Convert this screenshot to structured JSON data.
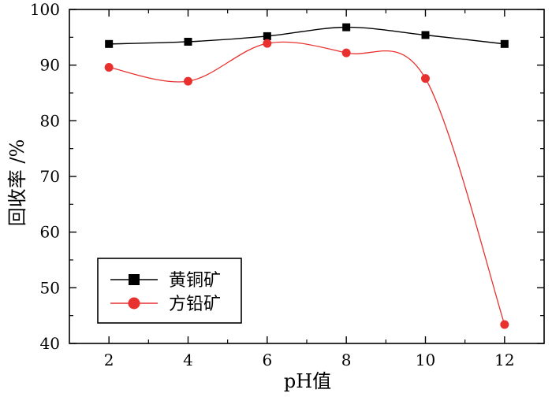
{
  "chart_data": {
    "type": "line",
    "title": "",
    "xlabel": "pH值",
    "ylabel": "回收率 /%",
    "x": [
      2,
      4,
      6,
      8,
      10,
      12
    ],
    "xlim": [
      1,
      13
    ],
    "ylim": [
      40,
      100
    ],
    "x_ticks": [
      2,
      4,
      6,
      8,
      10,
      12
    ],
    "y_ticks": [
      40,
      50,
      60,
      70,
      80,
      90,
      100
    ],
    "grid": false,
    "smooth": true,
    "legend_position": "bottom-left",
    "series": [
      {
        "name": "黄铜矿",
        "values": [
          93.8,
          94.2,
          95.2,
          96.8,
          95.4,
          93.8
        ],
        "color": "#000000",
        "marker": "square"
      },
      {
        "name": "方铅矿",
        "values": [
          89.6,
          87.1,
          93.9,
          92.2,
          87.6,
          43.4
        ],
        "color": "#e8312f",
        "marker": "circle"
      }
    ]
  }
}
